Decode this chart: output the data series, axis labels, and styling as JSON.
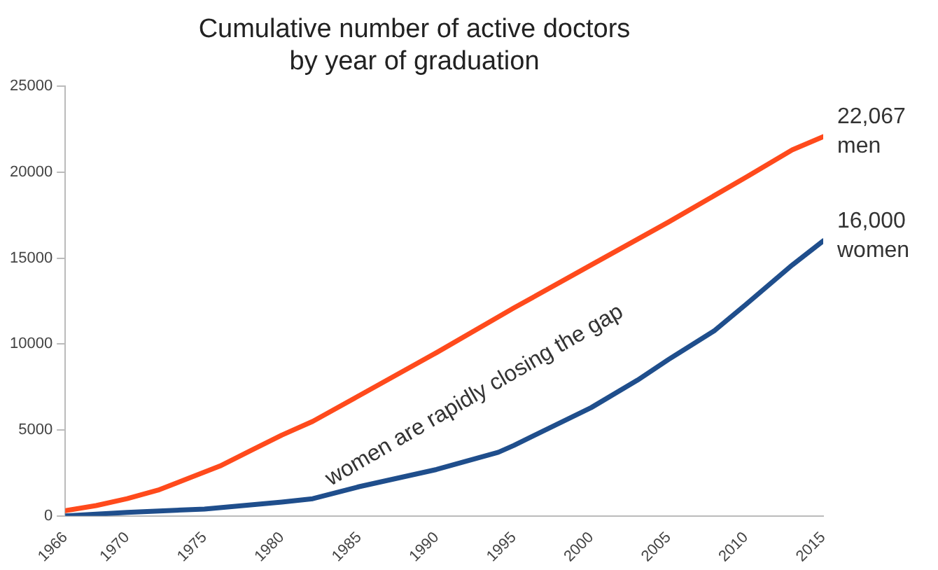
{
  "chart_data": {
    "type": "line",
    "title": "Cumulative number of active doctors\nby year of graduation",
    "xlim": [
      1966,
      2015
    ],
    "xticks": [
      1966,
      1970,
      1975,
      1980,
      1985,
      1990,
      1995,
      2000,
      2005,
      2010,
      2015
    ],
    "ylim": [
      0,
      25000
    ],
    "yticks": [
      0,
      5000,
      10000,
      15000,
      20000,
      25000
    ],
    "grid": false,
    "legend": false,
    "marker": "none",
    "line_style": "solid",
    "annotations": [
      "women are rapidly closing the gap"
    ],
    "series": [
      {
        "name": "men",
        "color": "#ff4a1c",
        "x": [
          1966,
          1968,
          1970,
          1972,
          1974,
          1976,
          1978,
          1980,
          1982,
          1985,
          1990,
          1995,
          2000,
          2005,
          2010,
          2013,
          2015
        ],
        "values": [
          300,
          600,
          1000,
          1500,
          2200,
          2900,
          3800,
          4700,
          5500,
          7000,
          9500,
          12100,
          14600,
          17100,
          19700,
          21300,
          22067
        ],
        "value_labels": [
          null,
          null,
          null,
          null,
          null,
          null,
          null,
          null,
          null,
          null,
          null,
          null,
          null,
          null,
          null,
          null,
          "22,067"
        ]
      },
      {
        "name": "women",
        "color": "#1f4e8c",
        "x": [
          1966,
          1970,
          1975,
          1980,
          1982,
          1985,
          1990,
          1994,
          1995,
          2000,
          2003,
          2005,
          2008,
          2010,
          2013,
          2015
        ],
        "values": [
          0,
          200,
          400,
          800,
          1000,
          1700,
          2700,
          3700,
          4100,
          6300,
          7900,
          9100,
          10800,
          12300,
          14600,
          16000
        ],
        "value_labels": [
          null,
          null,
          null,
          null,
          null,
          null,
          null,
          null,
          null,
          null,
          null,
          null,
          null,
          null,
          null,
          "16,000"
        ]
      }
    ]
  }
}
